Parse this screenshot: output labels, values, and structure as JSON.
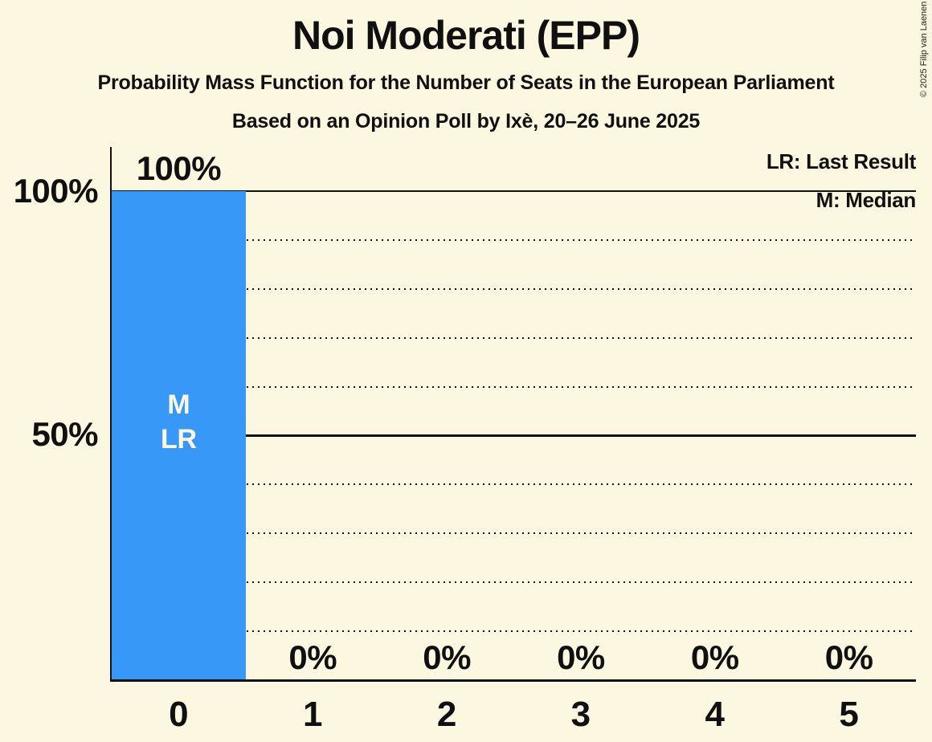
{
  "page": {
    "background_color": "#FCF7E0",
    "text_color": "#101010",
    "copyright_notice": "© 2025 Filip van Laenen"
  },
  "header": {
    "title": "Noi Moderati (EPP)",
    "subtitle": "Probability Mass Function for the Number of Seats in the European Parliament",
    "poll_info": "Based on an Opinion Poll by Ixè, 20–26 June 2025"
  },
  "legend": {
    "last_result_label": "LR: Last Result",
    "median_label": "M: Median"
  },
  "y_axis": {
    "labels": [
      {
        "text": "100%",
        "value": 100
      },
      {
        "text": "50%",
        "value": 50
      }
    ]
  },
  "chart_data": {
    "type": "bar",
    "title": "Noi Moderati (EPP)",
    "categories": [
      "0",
      "1",
      "2",
      "3",
      "4",
      "5"
    ],
    "values": [
      100,
      0,
      0,
      0,
      0,
      0
    ],
    "bar_labels": [
      "100%",
      "0%",
      "0%",
      "0%",
      "0%",
      "0%"
    ],
    "annotations": [
      {
        "category": "0",
        "lines": [
          "M",
          "LR"
        ]
      }
    ],
    "legend_entries": [
      "LR: Last Result",
      "M: Median"
    ],
    "ylim": [
      0,
      100
    ],
    "y_tick_labels": [
      "100%",
      "50%"
    ],
    "gridlines": {
      "solid": [
        100,
        50
      ],
      "dotted": [
        90,
        80,
        70,
        60,
        40,
        30,
        20,
        10
      ]
    },
    "grid_on": true,
    "bar_color": "#3898F8",
    "bar_label_color": "#FCF7E0"
  }
}
